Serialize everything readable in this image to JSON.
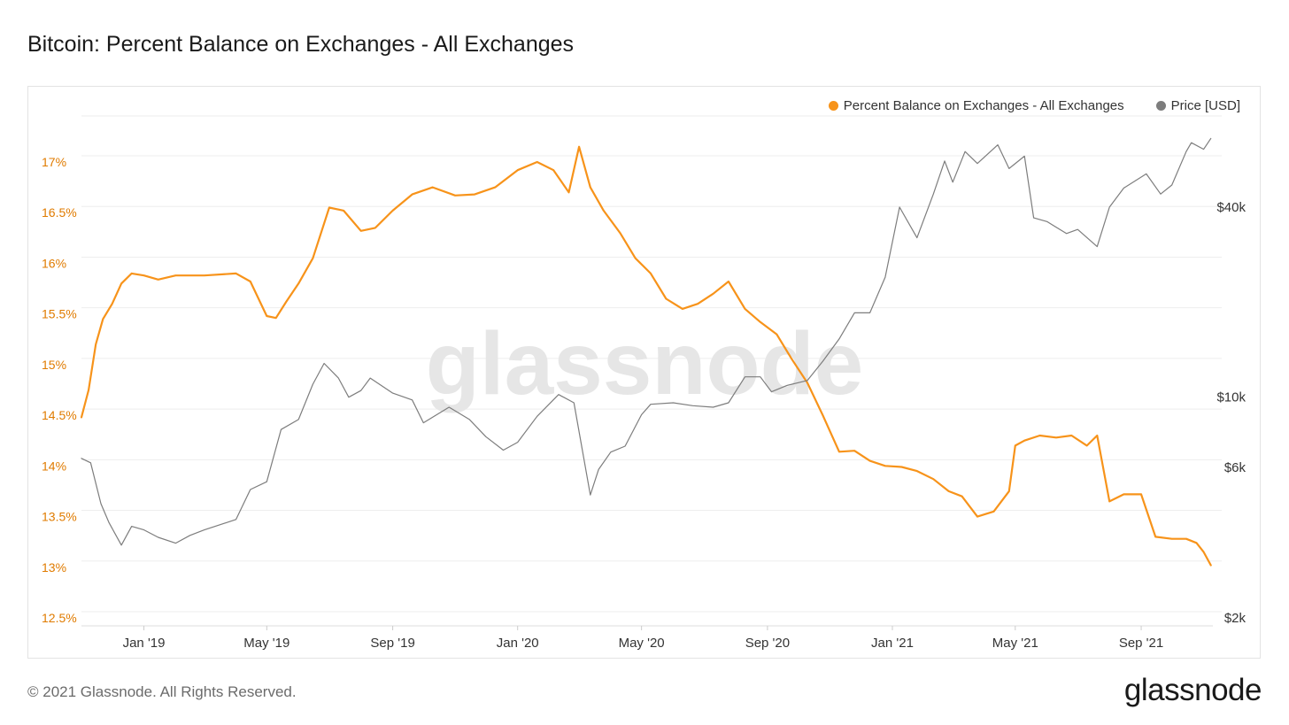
{
  "title": "Bitcoin: Percent Balance on Exchanges - All Exchanges",
  "footer": {
    "copyright": "© 2021 Glassnode. All Rights Reserved.",
    "logo": "glassnode"
  },
  "watermark": "glassnode",
  "colors": {
    "balance": "#f7931a",
    "price": "#7d7d7d",
    "left_axis_text": "#e07b00",
    "grid": "#eeeeee"
  },
  "chart_data": {
    "type": "line",
    "title": "Bitcoin: Percent Balance on Exchanges - All Exchanges",
    "grid": true,
    "legend_position": "top-right",
    "x_ticks": [
      "Jan '19",
      "May '19",
      "Sep '19",
      "Jan '20",
      "May '20",
      "Sep '20",
      "Jan '21",
      "May '21",
      "Sep '21"
    ],
    "x_tick_dates": [
      "2019-01-01",
      "2019-05-01",
      "2019-09-01",
      "2020-01-01",
      "2020-05-01",
      "2020-09-01",
      "2021-01-01",
      "2021-05-01",
      "2021-09-01"
    ],
    "x_range": [
      "2018-11-01",
      "2021-11-10"
    ],
    "y_left": {
      "ticks": [
        "12.5%",
        "13%",
        "13.5%",
        "14%",
        "14.5%",
        "15%",
        "15.5%",
        "16%",
        "16.5%",
        "17%"
      ],
      "tick_values": [
        12.5,
        13,
        13.5,
        14,
        14.5,
        15,
        15.5,
        16,
        16.5,
        17
      ],
      "range": [
        12.5,
        17.2
      ]
    },
    "y_right": {
      "scale": "log",
      "ticks": [
        "$2k",
        "$6k",
        "$10k",
        "$40k"
      ],
      "tick_values": [
        2000,
        6000,
        10000,
        40000
      ],
      "range": [
        2000,
        70000
      ]
    },
    "series": [
      {
        "name": "Percent Balance on Exchanges - All Exchanges",
        "axis": "left",
        "color": "#f7931a",
        "x": [
          "2018-11-01",
          "2018-11-08",
          "2018-11-15",
          "2018-11-22",
          "2018-12-01",
          "2018-12-10",
          "2018-12-20",
          "2019-01-01",
          "2019-01-15",
          "2019-02-01",
          "2019-03-01",
          "2019-04-01",
          "2019-04-15",
          "2019-05-01",
          "2019-05-10",
          "2019-05-20",
          "2019-06-01",
          "2019-06-15",
          "2019-07-01",
          "2019-07-15",
          "2019-08-01",
          "2019-08-15",
          "2019-09-01",
          "2019-09-20",
          "2019-10-10",
          "2019-11-01",
          "2019-11-20",
          "2019-12-10",
          "2020-01-01",
          "2020-01-20",
          "2020-02-05",
          "2020-02-20",
          "2020-03-01",
          "2020-03-12",
          "2020-03-25",
          "2020-04-10",
          "2020-04-25",
          "2020-05-10",
          "2020-05-25",
          "2020-06-10",
          "2020-06-25",
          "2020-07-10",
          "2020-07-25",
          "2020-08-10",
          "2020-08-25",
          "2020-09-10",
          "2020-09-25",
          "2020-10-10",
          "2020-10-25",
          "2020-11-10",
          "2020-11-25",
          "2020-12-10",
          "2020-12-25",
          "2021-01-10",
          "2021-01-25",
          "2021-02-10",
          "2021-02-25",
          "2021-03-10",
          "2021-03-25",
          "2021-04-10",
          "2021-04-25",
          "2021-05-01",
          "2021-05-10",
          "2021-05-25",
          "2021-06-10",
          "2021-06-25",
          "2021-07-10",
          "2021-07-20",
          "2021-08-01",
          "2021-08-15",
          "2021-09-01",
          "2021-09-15",
          "2021-10-01",
          "2021-10-15",
          "2021-10-25",
          "2021-11-01",
          "2021-11-08"
        ],
        "values": [
          14.48,
          14.75,
          15.2,
          15.45,
          15.6,
          15.8,
          15.9,
          15.88,
          15.84,
          15.88,
          15.88,
          15.9,
          15.82,
          15.48,
          15.46,
          15.62,
          15.8,
          16.05,
          16.55,
          16.52,
          16.32,
          16.35,
          16.52,
          16.68,
          16.75,
          16.67,
          16.68,
          16.75,
          16.92,
          17.0,
          16.92,
          16.7,
          17.15,
          16.75,
          16.52,
          16.3,
          16.05,
          15.9,
          15.65,
          15.55,
          15.6,
          15.7,
          15.82,
          15.55,
          15.42,
          15.3,
          15.05,
          14.82,
          14.5,
          14.14,
          14.15,
          14.05,
          14.0,
          13.99,
          13.95,
          13.87,
          13.75,
          13.7,
          13.5,
          13.55,
          13.75,
          14.2,
          14.25,
          14.3,
          14.28,
          14.3,
          14.2,
          14.3,
          13.65,
          13.72,
          13.72,
          13.3,
          13.28,
          13.28,
          13.24,
          13.15,
          13.02
        ]
      },
      {
        "name": "Price [USD]",
        "axis": "right",
        "color": "#7d7d7d",
        "x": [
          "2018-11-01",
          "2018-11-10",
          "2018-11-20",
          "2018-11-28",
          "2018-12-10",
          "2018-12-20",
          "2019-01-01",
          "2019-01-15",
          "2019-02-01",
          "2019-02-15",
          "2019-03-01",
          "2019-04-01",
          "2019-04-15",
          "2019-05-01",
          "2019-05-15",
          "2019-06-01",
          "2019-06-15",
          "2019-06-26",
          "2019-07-10",
          "2019-07-20",
          "2019-08-01",
          "2019-08-10",
          "2019-09-01",
          "2019-09-20",
          "2019-10-01",
          "2019-10-26",
          "2019-11-15",
          "2019-12-01",
          "2019-12-18",
          "2020-01-01",
          "2020-01-20",
          "2020-02-10",
          "2020-02-25",
          "2020-03-12",
          "2020-03-20",
          "2020-04-01",
          "2020-04-15",
          "2020-05-01",
          "2020-05-10",
          "2020-06-01",
          "2020-06-20",
          "2020-07-10",
          "2020-07-25",
          "2020-08-10",
          "2020-08-25",
          "2020-09-05",
          "2020-09-20",
          "2020-10-10",
          "2020-10-25",
          "2020-11-10",
          "2020-11-25",
          "2020-12-10",
          "2020-12-25",
          "2021-01-08",
          "2021-01-25",
          "2021-02-10",
          "2021-02-21",
          "2021-03-01",
          "2021-03-13",
          "2021-03-25",
          "2021-04-14",
          "2021-04-25",
          "2021-05-10",
          "2021-05-19",
          "2021-06-01",
          "2021-06-20",
          "2021-07-01",
          "2021-07-20",
          "2021-08-01",
          "2021-08-15",
          "2021-09-06",
          "2021-09-20",
          "2021-10-01",
          "2021-10-15",
          "2021-10-20",
          "2021-11-01",
          "2021-11-08"
        ],
        "values": [
          6400,
          6200,
          4600,
          4000,
          3400,
          3900,
          3800,
          3600,
          3450,
          3650,
          3800,
          4100,
          5100,
          5400,
          7900,
          8500,
          11000,
          12800,
          11500,
          10000,
          10500,
          11500,
          10300,
          9800,
          8300,
          9300,
          8500,
          7500,
          6800,
          7200,
          8700,
          10200,
          9600,
          4900,
          5900,
          6700,
          7000,
          8800,
          9500,
          9600,
          9400,
          9300,
          9600,
          11600,
          11600,
          10400,
          10900,
          11300,
          13000,
          15300,
          18500,
          18500,
          24000,
          40000,
          32000,
          44000,
          56000,
          48000,
          60000,
          55000,
          63000,
          53000,
          58000,
          37000,
          36000,
          33000,
          34000,
          30000,
          40000,
          46000,
          51000,
          44000,
          47000,
          60000,
          64000,
          61000,
          66000
        ]
      }
    ]
  }
}
